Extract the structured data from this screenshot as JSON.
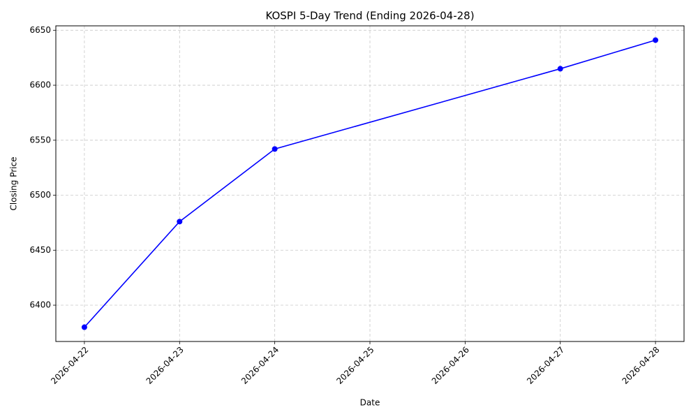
{
  "chart_data": {
    "type": "line",
    "title": "KOSPI 5-Day Trend (Ending 2026-04-28)",
    "x_label": "Date",
    "y_label": "Closing Price",
    "x": [
      "2026-04-22",
      "2026-04-23",
      "2026-04-24",
      "2026-04-27",
      "2026-04-28"
    ],
    "values": [
      6380,
      6476,
      6542,
      6615,
      6641
    ],
    "color": "blue",
    "marker": "o",
    "xlim": [
      "2026-04-21T16:48",
      "2026-04-28T07:12"
    ],
    "xticks": [
      "2026-04-22",
      "2026-04-23",
      "2026-04-24",
      "2026-04-25",
      "2026-04-26",
      "2026-04-27",
      "2026-04-28"
    ],
    "ylim": [
      6367,
      6654
    ],
    "yticks": [
      6400,
      6450,
      6500,
      6550,
      6600,
      6650
    ],
    "grid": true
  }
}
